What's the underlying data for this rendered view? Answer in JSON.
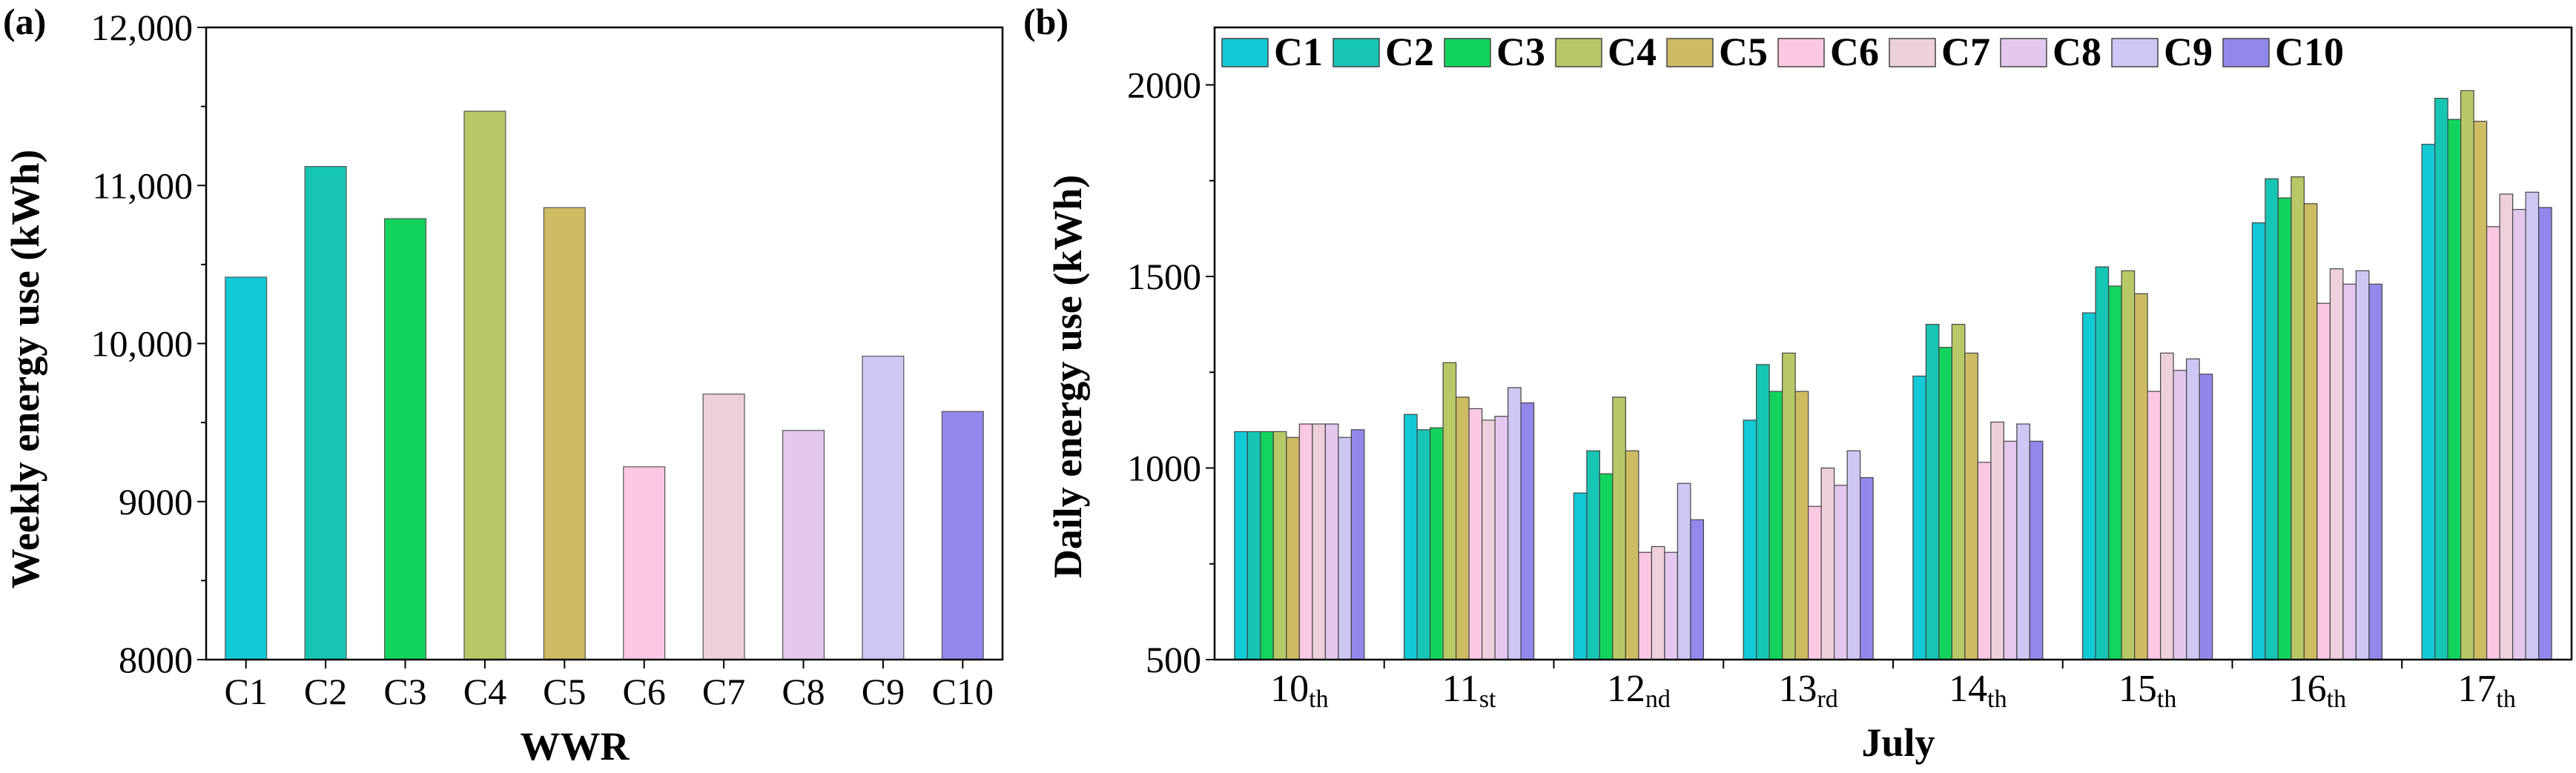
{
  "chart_data": [
    {
      "panel": "(a)",
      "type": "bar",
      "title": "",
      "xlabel": "WWR",
      "ylabel": "Weekly energy use (kWh)",
      "ylim": [
        8000,
        12000
      ],
      "yticks": [
        8000,
        9000,
        10000,
        11000,
        12000
      ],
      "ytick_labels": [
        "8000",
        "9000",
        "10,000",
        "11,000",
        "12,000"
      ],
      "categories": [
        "C1",
        "C2",
        "C3",
        "C4",
        "C5",
        "C6",
        "C7",
        "C8",
        "C9",
        "C10"
      ],
      "values": [
        10420,
        11120,
        10790,
        11470,
        10860,
        9220,
        9680,
        9450,
        9920,
        9570
      ],
      "colors": [
        "#12C9D6",
        "#17C5B4",
        "#12D45C",
        "#B7C966",
        "#CDBC63",
        "#FBC8E4",
        "#EDD0DC",
        "#E3C7EE",
        "#CDC7F4",
        "#9288EC"
      ],
      "grid": false,
      "legend": "none"
    },
    {
      "panel": "(b)",
      "type": "bar",
      "title": "",
      "xlabel": "July",
      "ylabel": "Daily energy use (kWh)",
      "ylim": [
        500,
        2150
      ],
      "yticks": [
        500,
        1000,
        1500,
        2000
      ],
      "ytick_labels": [
        "500",
        "1000",
        "1500",
        "2000"
      ],
      "categories": [
        {
          "day": "10",
          "suffix": "th"
        },
        {
          "day": "11",
          "suffix": "st"
        },
        {
          "day": "12",
          "suffix": "nd"
        },
        {
          "day": "13",
          "suffix": "rd"
        },
        {
          "day": "14",
          "suffix": "th"
        },
        {
          "day": "15",
          "suffix": "th"
        },
        {
          "day": "16",
          "suffix": "th"
        },
        {
          "day": "17",
          "suffix": "th"
        }
      ],
      "series": [
        {
          "name": "C1",
          "color": "#12C9D6",
          "values": [
            1095,
            1140,
            935,
            1125,
            1240,
            1405,
            1640,
            1845
          ]
        },
        {
          "name": "C2",
          "color": "#17C5B4",
          "values": [
            1095,
            1100,
            1045,
            1270,
            1375,
            1525,
            1755,
            1965
          ]
        },
        {
          "name": "C3",
          "color": "#12D45C",
          "values": [
            1095,
            1105,
            985,
            1200,
            1315,
            1475,
            1705,
            1910
          ]
        },
        {
          "name": "C4",
          "color": "#B7C966",
          "values": [
            1095,
            1275,
            1185,
            1300,
            1375,
            1515,
            1760,
            1985
          ]
        },
        {
          "name": "C5",
          "color": "#CDBC63",
          "values": [
            1080,
            1185,
            1045,
            1200,
            1300,
            1455,
            1690,
            1905
          ]
        },
        {
          "name": "C6",
          "color": "#FBC8E4",
          "values": [
            1115,
            1155,
            780,
            900,
            1015,
            1200,
            1430,
            1630
          ]
        },
        {
          "name": "C7",
          "color": "#EDD0DC",
          "values": [
            1115,
            1125,
            795,
            1000,
            1120,
            1300,
            1520,
            1715
          ]
        },
        {
          "name": "C8",
          "color": "#E3C7EE",
          "values": [
            1115,
            1135,
            780,
            955,
            1070,
            1255,
            1480,
            1675
          ]
        },
        {
          "name": "C9",
          "color": "#CDC7F4",
          "values": [
            1080,
            1210,
            960,
            1045,
            1115,
            1285,
            1515,
            1720
          ]
        },
        {
          "name": "C10",
          "color": "#9288EC",
          "values": [
            1100,
            1170,
            865,
            975,
            1070,
            1245,
            1480,
            1680
          ]
        }
      ],
      "grid": false,
      "legend": "top-left, inside plot"
    }
  ]
}
